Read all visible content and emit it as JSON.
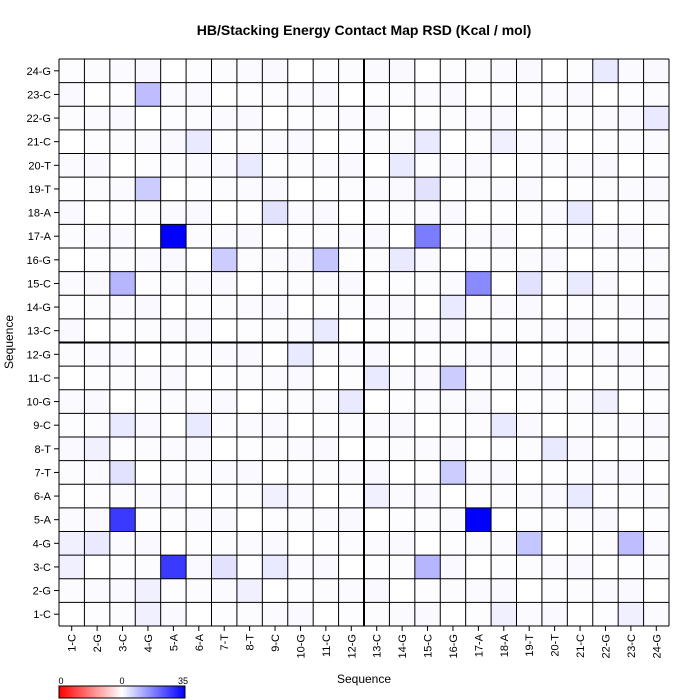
{
  "chart_data": {
    "type": "heatmap",
    "title": "HB/Stacking Energy Contact Map RSD (Kcal / mol)",
    "xlabel": "Sequence",
    "ylabel": "Sequence",
    "labels": [
      "1-C",
      "2-G",
      "3-C",
      "4-G",
      "5-A",
      "6-A",
      "7-T",
      "8-T",
      "9-C",
      "10-G",
      "11-C",
      "12-G",
      "13-C",
      "14-G",
      "15-C",
      "16-G",
      "17-A",
      "18-A",
      "19-T",
      "20-T",
      "21-C",
      "22-G",
      "23-C",
      "24-G"
    ],
    "color_scale": {
      "min": 0,
      "mid": 0,
      "max": 35,
      "low_color": "#ff0000",
      "mid_color": "#ffffff",
      "high_color": "#0000ff",
      "tick_labels": [
        "0",
        "0",
        "35"
      ]
    },
    "grid": true,
    "cells": [
      {
        "row": "24-G",
        "col": "22-G",
        "value": 3
      },
      {
        "row": "23-C",
        "col": "4-G",
        "value": 9
      },
      {
        "row": "22-G",
        "col": "24-G",
        "value": 3
      },
      {
        "row": "21-C",
        "col": "6-A",
        "value": 3
      },
      {
        "row": "21-C",
        "col": "15-C",
        "value": 3
      },
      {
        "row": "21-C",
        "col": "18-A",
        "value": 2
      },
      {
        "row": "20-T",
        "col": "8-T",
        "value": 3
      },
      {
        "row": "20-T",
        "col": "14-G",
        "value": 3
      },
      {
        "row": "19-T",
        "col": "4-G",
        "value": 7
      },
      {
        "row": "19-T",
        "col": "15-C",
        "value": 4
      },
      {
        "row": "18-A",
        "col": "9-C",
        "value": 4
      },
      {
        "row": "18-A",
        "col": "21-C",
        "value": 3
      },
      {
        "row": "17-A",
        "col": "5-A",
        "value": 35
      },
      {
        "row": "17-A",
        "col": "15-C",
        "value": 18
      },
      {
        "row": "16-G",
        "col": "7-T",
        "value": 7
      },
      {
        "row": "16-G",
        "col": "11-C",
        "value": 8
      },
      {
        "row": "16-G",
        "col": "14-G",
        "value": 3
      },
      {
        "row": "15-C",
        "col": "3-C",
        "value": 10
      },
      {
        "row": "15-C",
        "col": "17-A",
        "value": 16
      },
      {
        "row": "15-C",
        "col": "19-T",
        "value": 4
      },
      {
        "row": "15-C",
        "col": "21-C",
        "value": 3
      },
      {
        "row": "14-G",
        "col": "16-G",
        "value": 3
      },
      {
        "row": "13-C",
        "col": "11-C",
        "value": 3
      },
      {
        "row": "12-G",
        "col": "10-G",
        "value": 3
      },
      {
        "row": "11-C",
        "col": "13-C",
        "value": 3
      },
      {
        "row": "11-C",
        "col": "16-G",
        "value": 7
      },
      {
        "row": "10-G",
        "col": "12-G",
        "value": 3
      },
      {
        "row": "10-G",
        "col": "22-G",
        "value": 2
      },
      {
        "row": "9-C",
        "col": "3-C",
        "value": 3
      },
      {
        "row": "9-C",
        "col": "6-A",
        "value": 3
      },
      {
        "row": "9-C",
        "col": "18-A",
        "value": 3
      },
      {
        "row": "8-T",
        "col": "2-G",
        "value": 2
      },
      {
        "row": "8-T",
        "col": "20-T",
        "value": 3
      },
      {
        "row": "7-T",
        "col": "3-C",
        "value": 4
      },
      {
        "row": "7-T",
        "col": "16-G",
        "value": 7
      },
      {
        "row": "6-A",
        "col": "9-C",
        "value": 2
      },
      {
        "row": "6-A",
        "col": "13-C",
        "value": 2
      },
      {
        "row": "6-A",
        "col": "21-C",
        "value": 3
      },
      {
        "row": "5-A",
        "col": "3-C",
        "value": 27
      },
      {
        "row": "5-A",
        "col": "17-A",
        "value": 35
      },
      {
        "row": "4-G",
        "col": "1-C",
        "value": 2
      },
      {
        "row": "4-G",
        "col": "2-G",
        "value": 3
      },
      {
        "row": "4-G",
        "col": "19-T",
        "value": 8
      },
      {
        "row": "4-G",
        "col": "23-C",
        "value": 9
      },
      {
        "row": "3-C",
        "col": "1-C",
        "value": 2
      },
      {
        "row": "3-C",
        "col": "5-A",
        "value": 27
      },
      {
        "row": "3-C",
        "col": "7-T",
        "value": 4
      },
      {
        "row": "3-C",
        "col": "9-C",
        "value": 3
      },
      {
        "row": "3-C",
        "col": "15-C",
        "value": 10
      },
      {
        "row": "2-G",
        "col": "4-G",
        "value": 2
      },
      {
        "row": "2-G",
        "col": "8-T",
        "value": 2
      },
      {
        "row": "1-C",
        "col": "4-G",
        "value": 2
      },
      {
        "row": "1-C",
        "col": "18-A",
        "value": 2
      },
      {
        "row": "1-C",
        "col": "23-C",
        "value": 2
      }
    ]
  }
}
